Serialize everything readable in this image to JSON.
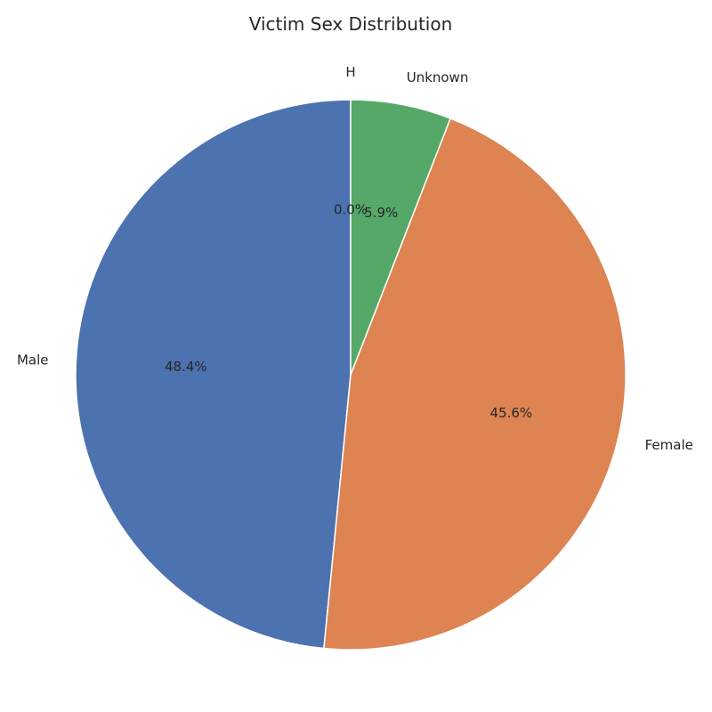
{
  "chart_data": {
    "type": "pie",
    "title": "Victim Sex Distribution",
    "slices": [
      {
        "label": "Male",
        "value": 48.4,
        "pct_label": "48.4%",
        "color": "#4c72b0"
      },
      {
        "label": "Female",
        "value": 45.6,
        "pct_label": "45.6%",
        "color": "#dd8452"
      },
      {
        "label": "Unknown",
        "value": 5.9,
        "pct_label": "5.9%",
        "color": "#55a868"
      },
      {
        "label": "H",
        "value": 0.0,
        "pct_label": "0.0%",
        "color": "#c44e52"
      }
    ],
    "start_angle_deg": 90,
    "direction": "counterclockwise",
    "legend": "none"
  }
}
